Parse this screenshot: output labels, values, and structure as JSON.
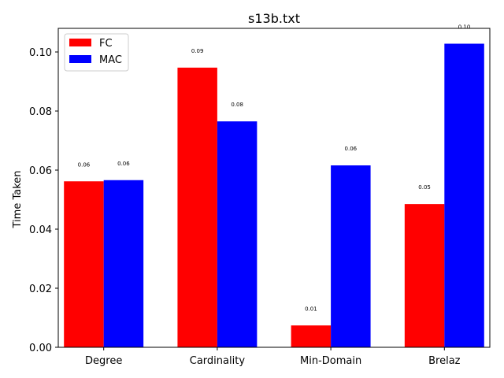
{
  "chart_data": {
    "type": "bar",
    "title": "s13b.txt",
    "xlabel": "",
    "ylabel": "Time Taken",
    "categories": [
      "Degree",
      "Cardinality",
      "Min-Domain",
      "Brelaz"
    ],
    "series": [
      {
        "name": "FC",
        "color": "#ff0000",
        "values": [
          0.0562,
          0.0947,
          0.0074,
          0.0485
        ],
        "labels": [
          "0.06",
          "0.09",
          "0.01",
          "0.05"
        ]
      },
      {
        "name": "MAC",
        "color": "#0000ff",
        "values": [
          0.0566,
          0.0765,
          0.0616,
          0.1028
        ],
        "labels": [
          "0.06",
          "0.08",
          "0.06",
          "0.10"
        ]
      }
    ],
    "ylim": [
      0,
      0.108
    ],
    "yticks": [
      0.0,
      0.02,
      0.04,
      0.06,
      0.08,
      0.1
    ],
    "ytick_labels": [
      "0.00",
      "0.02",
      "0.04",
      "0.06",
      "0.08",
      "0.10"
    ],
    "grid": false,
    "legend_position": "top-left"
  }
}
